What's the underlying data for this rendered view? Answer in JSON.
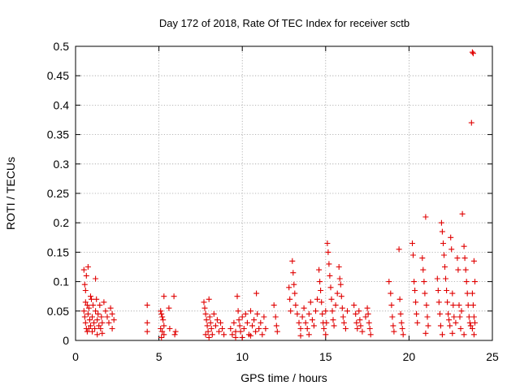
{
  "chart_data": {
    "type": "scatter",
    "title": "Day 172 of 2018, Rate Of TEC Index for receiver sctb",
    "xlabel": "GPS time / hours",
    "ylabel": "ROTI / TECUs",
    "xlim": [
      0,
      25
    ],
    "ylim": [
      0,
      0.5
    ],
    "xticks": [
      0,
      5,
      10,
      15,
      20,
      25
    ],
    "xtick_labels": [
      "0",
      "5",
      "10",
      "15",
      "20",
      "25"
    ],
    "yticks": [
      0,
      0.05,
      0.1,
      0.15,
      0.2,
      0.25,
      0.3,
      0.35,
      0.4,
      0.45,
      0.5
    ],
    "ytick_labels": [
      "0",
      "0.05",
      "0.1",
      "0.15",
      "0.2",
      "0.25",
      "0.3",
      "0.35",
      "0.4",
      "0.45",
      "0.5"
    ],
    "grid": true,
    "marker": "+",
    "color": "#e00000",
    "series": [
      {
        "name": "ROTI",
        "points": [
          [
            0.5,
            0.12
          ],
          [
            0.55,
            0.095
          ],
          [
            0.6,
            0.085
          ],
          [
            0.65,
            0.11
          ],
          [
            0.7,
            0.06
          ],
          [
            0.75,
            0.125
          ],
          [
            0.5,
            0.05
          ],
          [
            0.55,
            0.04
          ],
          [
            0.6,
            0.03
          ],
          [
            0.65,
            0.02
          ],
          [
            0.7,
            0.015
          ],
          [
            0.75,
            0.045
          ],
          [
            0.8,
            0.055
          ],
          [
            0.85,
            0.035
          ],
          [
            0.9,
            0.025
          ],
          [
            0.95,
            0.07
          ],
          [
            1.0,
            0.04
          ],
          [
            1.05,
            0.06
          ],
          [
            1.1,
            0.03
          ],
          [
            1.15,
            0.02
          ],
          [
            1.2,
            0.05
          ],
          [
            1.25,
            0.07
          ],
          [
            1.3,
            0.035
          ],
          [
            1.35,
            0.045
          ],
          [
            1.4,
            0.025
          ],
          [
            1.45,
            0.06
          ],
          [
            1.5,
            0.02
          ],
          [
            1.55,
            0.04
          ],
          [
            1.6,
            0.03
          ],
          [
            1.7,
            0.065
          ],
          [
            1.8,
            0.05
          ],
          [
            1.9,
            0.04
          ],
          [
            2.0,
            0.03
          ],
          [
            2.1,
            0.055
          ],
          [
            2.2,
            0.045
          ],
          [
            2.3,
            0.035
          ],
          [
            1.2,
            0.105
          ],
          [
            0.9,
            0.075
          ],
          [
            0.6,
            0.065
          ],
          [
            0.8,
            0.02
          ],
          [
            1.0,
            0.015
          ],
          [
            1.3,
            0.01
          ],
          [
            1.6,
            0.012
          ],
          [
            2.2,
            0.02
          ],
          [
            4.3,
            0.06
          ],
          [
            4.3,
            0.03
          ],
          [
            4.3,
            0.015
          ],
          [
            5.1,
            0.05
          ],
          [
            5.15,
            0.045
          ],
          [
            5.2,
            0.04
          ],
          [
            5.25,
            0.035
          ],
          [
            5.3,
            0.025
          ],
          [
            5.1,
            0.02
          ],
          [
            5.2,
            0.015
          ],
          [
            5.3,
            0.01
          ],
          [
            5.15,
            0.005
          ],
          [
            5.3,
            0.075
          ],
          [
            5.9,
            0.075
          ],
          [
            6.0,
            0.015
          ],
          [
            5.95,
            0.01
          ],
          [
            5.6,
            0.055
          ],
          [
            5.65,
            0.02
          ],
          [
            7.7,
            0.065
          ],
          [
            7.75,
            0.055
          ],
          [
            7.8,
            0.045
          ],
          [
            7.85,
            0.035
          ],
          [
            7.9,
            0.025
          ],
          [
            7.95,
            0.015
          ],
          [
            8.0,
            0.07
          ],
          [
            8.05,
            0.04
          ],
          [
            8.1,
            0.03
          ],
          [
            8.15,
            0.02
          ],
          [
            8.2,
            0.01
          ],
          [
            8.3,
            0.045
          ],
          [
            8.4,
            0.025
          ],
          [
            8.5,
            0.035
          ],
          [
            8.6,
            0.015
          ],
          [
            8.7,
            0.03
          ],
          [
            8.8,
            0.02
          ],
          [
            8.9,
            0.01
          ],
          [
            8.0,
            0.005
          ],
          [
            7.8,
            0.01
          ],
          [
            9.3,
            0.02
          ],
          [
            9.4,
            0.01
          ],
          [
            9.5,
            0.03
          ],
          [
            9.6,
            0.015
          ],
          [
            9.7,
            0.075
          ],
          [
            9.75,
            0.05
          ],
          [
            9.8,
            0.035
          ],
          [
            9.85,
            0.025
          ],
          [
            9.9,
            0.015
          ],
          [
            10.0,
            0.04
          ],
          [
            10.1,
            0.02
          ],
          [
            10.2,
            0.045
          ],
          [
            10.3,
            0.03
          ],
          [
            10.4,
            0.01
          ],
          [
            10.5,
            0.05
          ],
          [
            10.6,
            0.025
          ],
          [
            10.7,
            0.035
          ],
          [
            10.8,
            0.015
          ],
          [
            10.85,
            0.08
          ],
          [
            10.9,
            0.045
          ],
          [
            11.0,
            0.02
          ],
          [
            11.1,
            0.03
          ],
          [
            11.2,
            0.01
          ],
          [
            11.3,
            0.04
          ],
          [
            11.4,
            0.02
          ],
          [
            10.0,
            0.005
          ],
          [
            9.6,
            0.005
          ],
          [
            10.5,
            0.008
          ],
          [
            11.9,
            0.06
          ],
          [
            12.0,
            0.04
          ],
          [
            12.05,
            0.025
          ],
          [
            12.1,
            0.015
          ],
          [
            12.8,
            0.09
          ],
          [
            12.85,
            0.07
          ],
          [
            12.9,
            0.05
          ],
          [
            13.0,
            0.135
          ],
          [
            13.05,
            0.115
          ],
          [
            13.1,
            0.095
          ],
          [
            13.15,
            0.08
          ],
          [
            13.2,
            0.06
          ],
          [
            13.3,
            0.045
          ],
          [
            13.4,
            0.03
          ],
          [
            13.5,
            0.02
          ],
          [
            13.6,
            0.04
          ],
          [
            13.7,
            0.055
          ],
          [
            13.8,
            0.03
          ],
          [
            13.9,
            0.02
          ],
          [
            14.0,
            0.045
          ],
          [
            14.1,
            0.065
          ],
          [
            14.2,
            0.035
          ],
          [
            14.3,
            0.025
          ],
          [
            14.4,
            0.05
          ],
          [
            14.5,
            0.07
          ],
          [
            14.6,
            0.12
          ],
          [
            14.65,
            0.1
          ],
          [
            14.7,
            0.085
          ],
          [
            14.75,
            0.065
          ],
          [
            14.8,
            0.045
          ],
          [
            14.85,
            0.03
          ],
          [
            14.9,
            0.02
          ],
          [
            15.0,
            0.05
          ],
          [
            15.05,
            0.03
          ],
          [
            15.1,
            0.165
          ],
          [
            15.15,
            0.15
          ],
          [
            15.2,
            0.13
          ],
          [
            15.25,
            0.11
          ],
          [
            15.3,
            0.09
          ],
          [
            15.35,
            0.07
          ],
          [
            15.4,
            0.05
          ],
          [
            15.45,
            0.035
          ],
          [
            15.5,
            0.025
          ],
          [
            15.6,
            0.06
          ],
          [
            15.7,
            0.08
          ],
          [
            15.8,
            0.125
          ],
          [
            15.85,
            0.105
          ],
          [
            15.9,
            0.095
          ],
          [
            15.95,
            0.075
          ],
          [
            16.0,
            0.055
          ],
          [
            16.05,
            0.04
          ],
          [
            16.1,
            0.03
          ],
          [
            16.2,
            0.02
          ],
          [
            16.3,
            0.05
          ],
          [
            15.0,
            0.01
          ],
          [
            14.0,
            0.01
          ],
          [
            13.5,
            0.008
          ],
          [
            16.7,
            0.06
          ],
          [
            16.8,
            0.045
          ],
          [
            16.85,
            0.03
          ],
          [
            16.9,
            0.02
          ],
          [
            17.0,
            0.05
          ],
          [
            17.05,
            0.035
          ],
          [
            17.1,
            0.025
          ],
          [
            17.2,
            0.015
          ],
          [
            17.4,
            0.04
          ],
          [
            17.5,
            0.055
          ],
          [
            17.55,
            0.045
          ],
          [
            17.6,
            0.03
          ],
          [
            17.65,
            0.02
          ],
          [
            17.7,
            0.01
          ],
          [
            18.8,
            0.1
          ],
          [
            18.9,
            0.08
          ],
          [
            18.95,
            0.06
          ],
          [
            19.0,
            0.04
          ],
          [
            19.05,
            0.025
          ],
          [
            19.1,
            0.015
          ],
          [
            19.4,
            0.155
          ],
          [
            19.45,
            0.07
          ],
          [
            19.5,
            0.045
          ],
          [
            19.55,
            0.03
          ],
          [
            19.6,
            0.02
          ],
          [
            19.65,
            0.01
          ],
          [
            20.2,
            0.165
          ],
          [
            20.25,
            0.145
          ],
          [
            20.3,
            0.1
          ],
          [
            20.35,
            0.085
          ],
          [
            20.4,
            0.065
          ],
          [
            20.45,
            0.045
          ],
          [
            20.5,
            0.03
          ],
          [
            20.8,
            0.14
          ],
          [
            20.85,
            0.12
          ],
          [
            20.9,
            0.1
          ],
          [
            20.95,
            0.08
          ],
          [
            21.0,
            0.21
          ],
          [
            21.05,
            0.06
          ],
          [
            21.1,
            0.04
          ],
          [
            21.15,
            0.025
          ],
          [
            21.7,
            0.105
          ],
          [
            21.75,
            0.085
          ],
          [
            21.8,
            0.065
          ],
          [
            21.85,
            0.045
          ],
          [
            21.9,
            0.025
          ],
          [
            21.95,
            0.2
          ],
          [
            22.0,
            0.185
          ],
          [
            22.05,
            0.165
          ],
          [
            22.1,
            0.145
          ],
          [
            22.15,
            0.125
          ],
          [
            22.2,
            0.105
          ],
          [
            22.25,
            0.085
          ],
          [
            22.3,
            0.065
          ],
          [
            22.35,
            0.045
          ],
          [
            22.4,
            0.035
          ],
          [
            22.45,
            0.025
          ],
          [
            22.5,
            0.175
          ],
          [
            22.55,
            0.155
          ],
          [
            22.6,
            0.08
          ],
          [
            22.65,
            0.06
          ],
          [
            22.7,
            0.04
          ],
          [
            22.8,
            0.03
          ],
          [
            22.9,
            0.14
          ],
          [
            22.95,
            0.12
          ],
          [
            23.0,
            0.06
          ],
          [
            23.05,
            0.04
          ],
          [
            23.1,
            0.02
          ],
          [
            23.15,
            0.05
          ],
          [
            23.2,
            0.215
          ],
          [
            23.3,
            0.16
          ],
          [
            23.35,
            0.14
          ],
          [
            23.4,
            0.12
          ],
          [
            23.45,
            0.1
          ],
          [
            23.5,
            0.08
          ],
          [
            23.55,
            0.06
          ],
          [
            23.6,
            0.04
          ],
          [
            23.65,
            0.03
          ],
          [
            23.7,
            0.025
          ],
          [
            23.75,
            0.37
          ],
          [
            23.8,
            0.49
          ],
          [
            23.85,
            0.488
          ],
          [
            23.9,
            0.135
          ],
          [
            23.95,
            0.1
          ],
          [
            23.8,
            0.08
          ],
          [
            23.85,
            0.06
          ],
          [
            23.9,
            0.04
          ],
          [
            23.95,
            0.03
          ],
          [
            23.8,
            0.02
          ],
          [
            23.9,
            0.01
          ],
          [
            22.0,
            0.01
          ],
          [
            21.0,
            0.012
          ],
          [
            22.6,
            0.012
          ],
          [
            23.3,
            0.01
          ]
        ]
      }
    ]
  }
}
